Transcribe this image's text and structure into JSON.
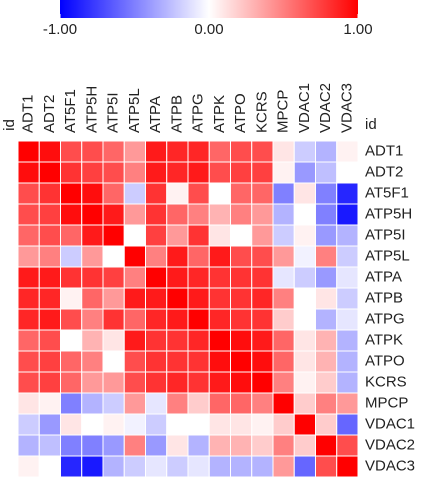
{
  "chart_data": {
    "type": "heatmap",
    "x_label": "id",
    "y_label": "id",
    "categories": [
      "ADT1",
      "ADT2",
      "AT5F1",
      "ATP5H",
      "ATP5I",
      "ATP5L",
      "ATPA",
      "ATPB",
      "ATPG",
      "ATPK",
      "ATPO",
      "KCRS",
      "MPCP",
      "VDAC1",
      "VDAC2",
      "VDAC3"
    ],
    "values": [
      [
        1,
        0.95,
        0.7,
        0.7,
        0.6,
        0.4,
        0.9,
        0.85,
        0.85,
        0.6,
        0.7,
        0.7,
        0.1,
        -0.2,
        -0.3,
        0.05
      ],
      [
        0.95,
        1,
        0.8,
        0.75,
        0.7,
        0.5,
        0.9,
        0.85,
        0.9,
        0.7,
        0.75,
        0.75,
        0.05,
        -0.4,
        -0.25,
        0
      ],
      [
        0.7,
        0.8,
        1,
        0.95,
        0.6,
        -0.2,
        0.8,
        0.05,
        0.7,
        0,
        0.6,
        0.6,
        -0.5,
        0.1,
        -0.5,
        -0.85
      ],
      [
        0.7,
        0.75,
        0.95,
        1,
        0.9,
        0.4,
        0.8,
        0.6,
        0.5,
        0.3,
        0.5,
        0.4,
        -0.3,
        0,
        -0.5,
        -0.9
      ],
      [
        0.6,
        0.7,
        0.6,
        0.9,
        1,
        0,
        0.75,
        0.4,
        0.8,
        0.1,
        0,
        0.4,
        -0.2,
        0.05,
        -0.4,
        -0.3
      ],
      [
        0.4,
        0.5,
        -0.2,
        0.4,
        0,
        1,
        0.5,
        0.9,
        0.6,
        0.9,
        0.7,
        0.7,
        0.4,
        -0.05,
        0.5,
        -0.2
      ],
      [
        0.9,
        0.9,
        0.8,
        0.8,
        0.75,
        0.5,
        1,
        0.9,
        0.85,
        0.8,
        0.8,
        0.8,
        -0.1,
        -0.2,
        -0.4,
        -0.1
      ],
      [
        0.85,
        0.85,
        0.05,
        0.6,
        0.4,
        0.9,
        0.9,
        1,
        0.9,
        0.8,
        0.8,
        0.85,
        0.5,
        0,
        0.1,
        -0.2
      ],
      [
        0.85,
        0.9,
        0.7,
        0.5,
        0.8,
        0.6,
        0.85,
        0.9,
        1,
        0.85,
        0.8,
        0.8,
        0.2,
        0,
        -0.3,
        -0.1
      ],
      [
        0.6,
        0.7,
        0,
        0.3,
        0.1,
        0.9,
        0.8,
        0.8,
        0.85,
        1,
        0.95,
        0.9,
        0.6,
        0.1,
        0.3,
        -0.3
      ],
      [
        0.7,
        0.75,
        0.6,
        0.5,
        0,
        0.7,
        0.8,
        0.8,
        0.8,
        0.95,
        1,
        0.95,
        0.6,
        0.1,
        0.3,
        -0.3
      ],
      [
        0.7,
        0.75,
        0.6,
        0.4,
        0.4,
        0.7,
        0.8,
        0.85,
        0.8,
        0.9,
        0.95,
        1,
        0.5,
        0.05,
        0.2,
        -0.3
      ],
      [
        0.1,
        0.05,
        -0.5,
        -0.3,
        -0.2,
        0.4,
        -0.1,
        0.5,
        0.2,
        0.6,
        0.6,
        0.5,
        1,
        0.2,
        0.5,
        0.4
      ],
      [
        -0.2,
        -0.4,
        0.1,
        0,
        0.05,
        -0.05,
        -0.2,
        0,
        0,
        0.1,
        0.1,
        0.05,
        0.2,
        1,
        0.2,
        -0.6
      ],
      [
        -0.3,
        -0.25,
        -0.5,
        -0.5,
        -0.4,
        0.5,
        -0.4,
        0.1,
        -0.3,
        0.3,
        0.3,
        0.2,
        0.5,
        0.2,
        1,
        0.7
      ],
      [
        0.05,
        0,
        -0.85,
        -0.9,
        -0.3,
        -0.2,
        -0.1,
        -0.2,
        -0.1,
        -0.3,
        -0.3,
        -0.3,
        0.4,
        -0.6,
        0.7,
        1
      ]
    ],
    "colorscale": [
      "#0000ff",
      "#ffffff",
      "#ff0000"
    ],
    "zlim": [
      -1,
      1
    ],
    "zticks": [
      {
        "value": -1,
        "label": "-1.00"
      },
      {
        "value": 0,
        "label": "0.00"
      },
      {
        "value": 1,
        "label": "1.00"
      }
    ]
  }
}
